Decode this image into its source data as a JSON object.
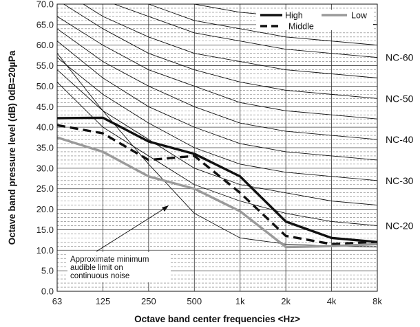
{
  "chart_data": {
    "type": "line",
    "x_categories": [
      "63",
      "125",
      "250",
      "500",
      "1k",
      "2k",
      "4k",
      "8k"
    ],
    "xlabel": "Octave band center frequencies <Hz>",
    "ylabel": "Octave band pressure level (dB) 0dB=20µPa",
    "ylim": [
      0,
      70
    ],
    "y_ticks": [
      "0.0",
      "5.0",
      "10.0",
      "15.0",
      "20.0",
      "25.0",
      "30.0",
      "35.0",
      "40.0",
      "45.0",
      "50.0",
      "55.0",
      "60.0",
      "65.0",
      "70.0"
    ],
    "grid": true,
    "legend_position": "top-right",
    "series": [
      {
        "name": "High",
        "style": "solid",
        "color": "#111111",
        "values": [
          42.2,
          42.3,
          36.5,
          33.5,
          28.0,
          17.0,
          13.0,
          12.0
        ]
      },
      {
        "name": "Middle",
        "style": "dashed",
        "color": "#111111",
        "values": [
          40.5,
          38.5,
          32.0,
          33.0,
          24.0,
          13.5,
          11.5,
          12.0
        ]
      },
      {
        "name": "Low",
        "style": "solid",
        "color": "#9a9a9a",
        "values": [
          37.5,
          34.0,
          28.0,
          25.0,
          19.5,
          10.8,
          11.0,
          11.5
        ]
      }
    ],
    "nc_curves": [
      {
        "label": "NC-60",
        "values": [
          77,
          71,
          67,
          63,
          61,
          59,
          58,
          57
        ]
      },
      {
        "label": "NC-50",
        "values": [
          71,
          64,
          58,
          54,
          51,
          49,
          48,
          47
        ]
      },
      {
        "label": "NC-40",
        "values": [
          64,
          56,
          50,
          45,
          41,
          39,
          38,
          37
        ]
      },
      {
        "label": "NC-30",
        "values": [
          57,
          48,
          41,
          35,
          31,
          29,
          28,
          27
        ]
      },
      {
        "label": "NC-20",
        "values": [
          51,
          40,
          33,
          26,
          22,
          19,
          17,
          16
        ]
      }
    ],
    "extra_curves": [
      {
        "values": [
          82,
          77,
          73,
          70,
          68,
          67,
          66,
          65
        ]
      },
      {
        "values": [
          80,
          74,
          70,
          66,
          64,
          62,
          61,
          60
        ]
      },
      {
        "values": [
          74,
          67,
          62,
          58,
          56,
          54,
          53,
          52
        ]
      },
      {
        "values": [
          67,
          60,
          54,
          50,
          46,
          44,
          43,
          42
        ]
      },
      {
        "values": [
          61,
          52,
          45,
          40,
          36,
          34,
          33,
          32
        ]
      },
      {
        "values": [
          54,
          44,
          37,
          30,
          26,
          24,
          22,
          21
        ]
      },
      {
        "values": [
          58,
          44,
          31,
          19,
          13,
          11.5,
          11,
          10.8
        ]
      }
    ],
    "annotation": {
      "text": [
        "Approximate minimum",
        "audible limit on",
        "continuous noise"
      ]
    }
  }
}
